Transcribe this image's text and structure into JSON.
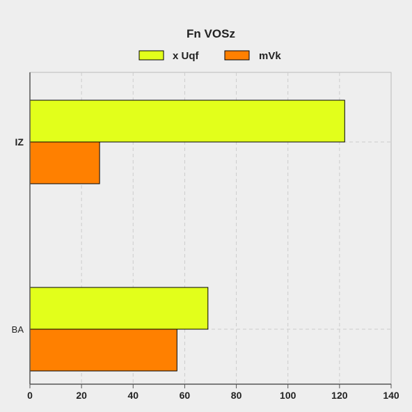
{
  "chart_data": {
    "type": "bar",
    "orientation": "horizontal",
    "title": "Fn VOSz",
    "xlabel": "",
    "ylabel": "",
    "categories": [
      "IZ",
      "BA"
    ],
    "series": [
      {
        "name": "x Uqf",
        "color": "#e2ff1b",
        "values": [
          122,
          69
        ]
      },
      {
        "name": "mVk",
        "color": "#ff8000",
        "values": [
          27,
          57
        ]
      }
    ],
    "xlim": [
      0,
      140
    ],
    "xticks": [
      0,
      20,
      40,
      60,
      80,
      100,
      120,
      140
    ],
    "grid": true,
    "legend_position": "top-center"
  }
}
